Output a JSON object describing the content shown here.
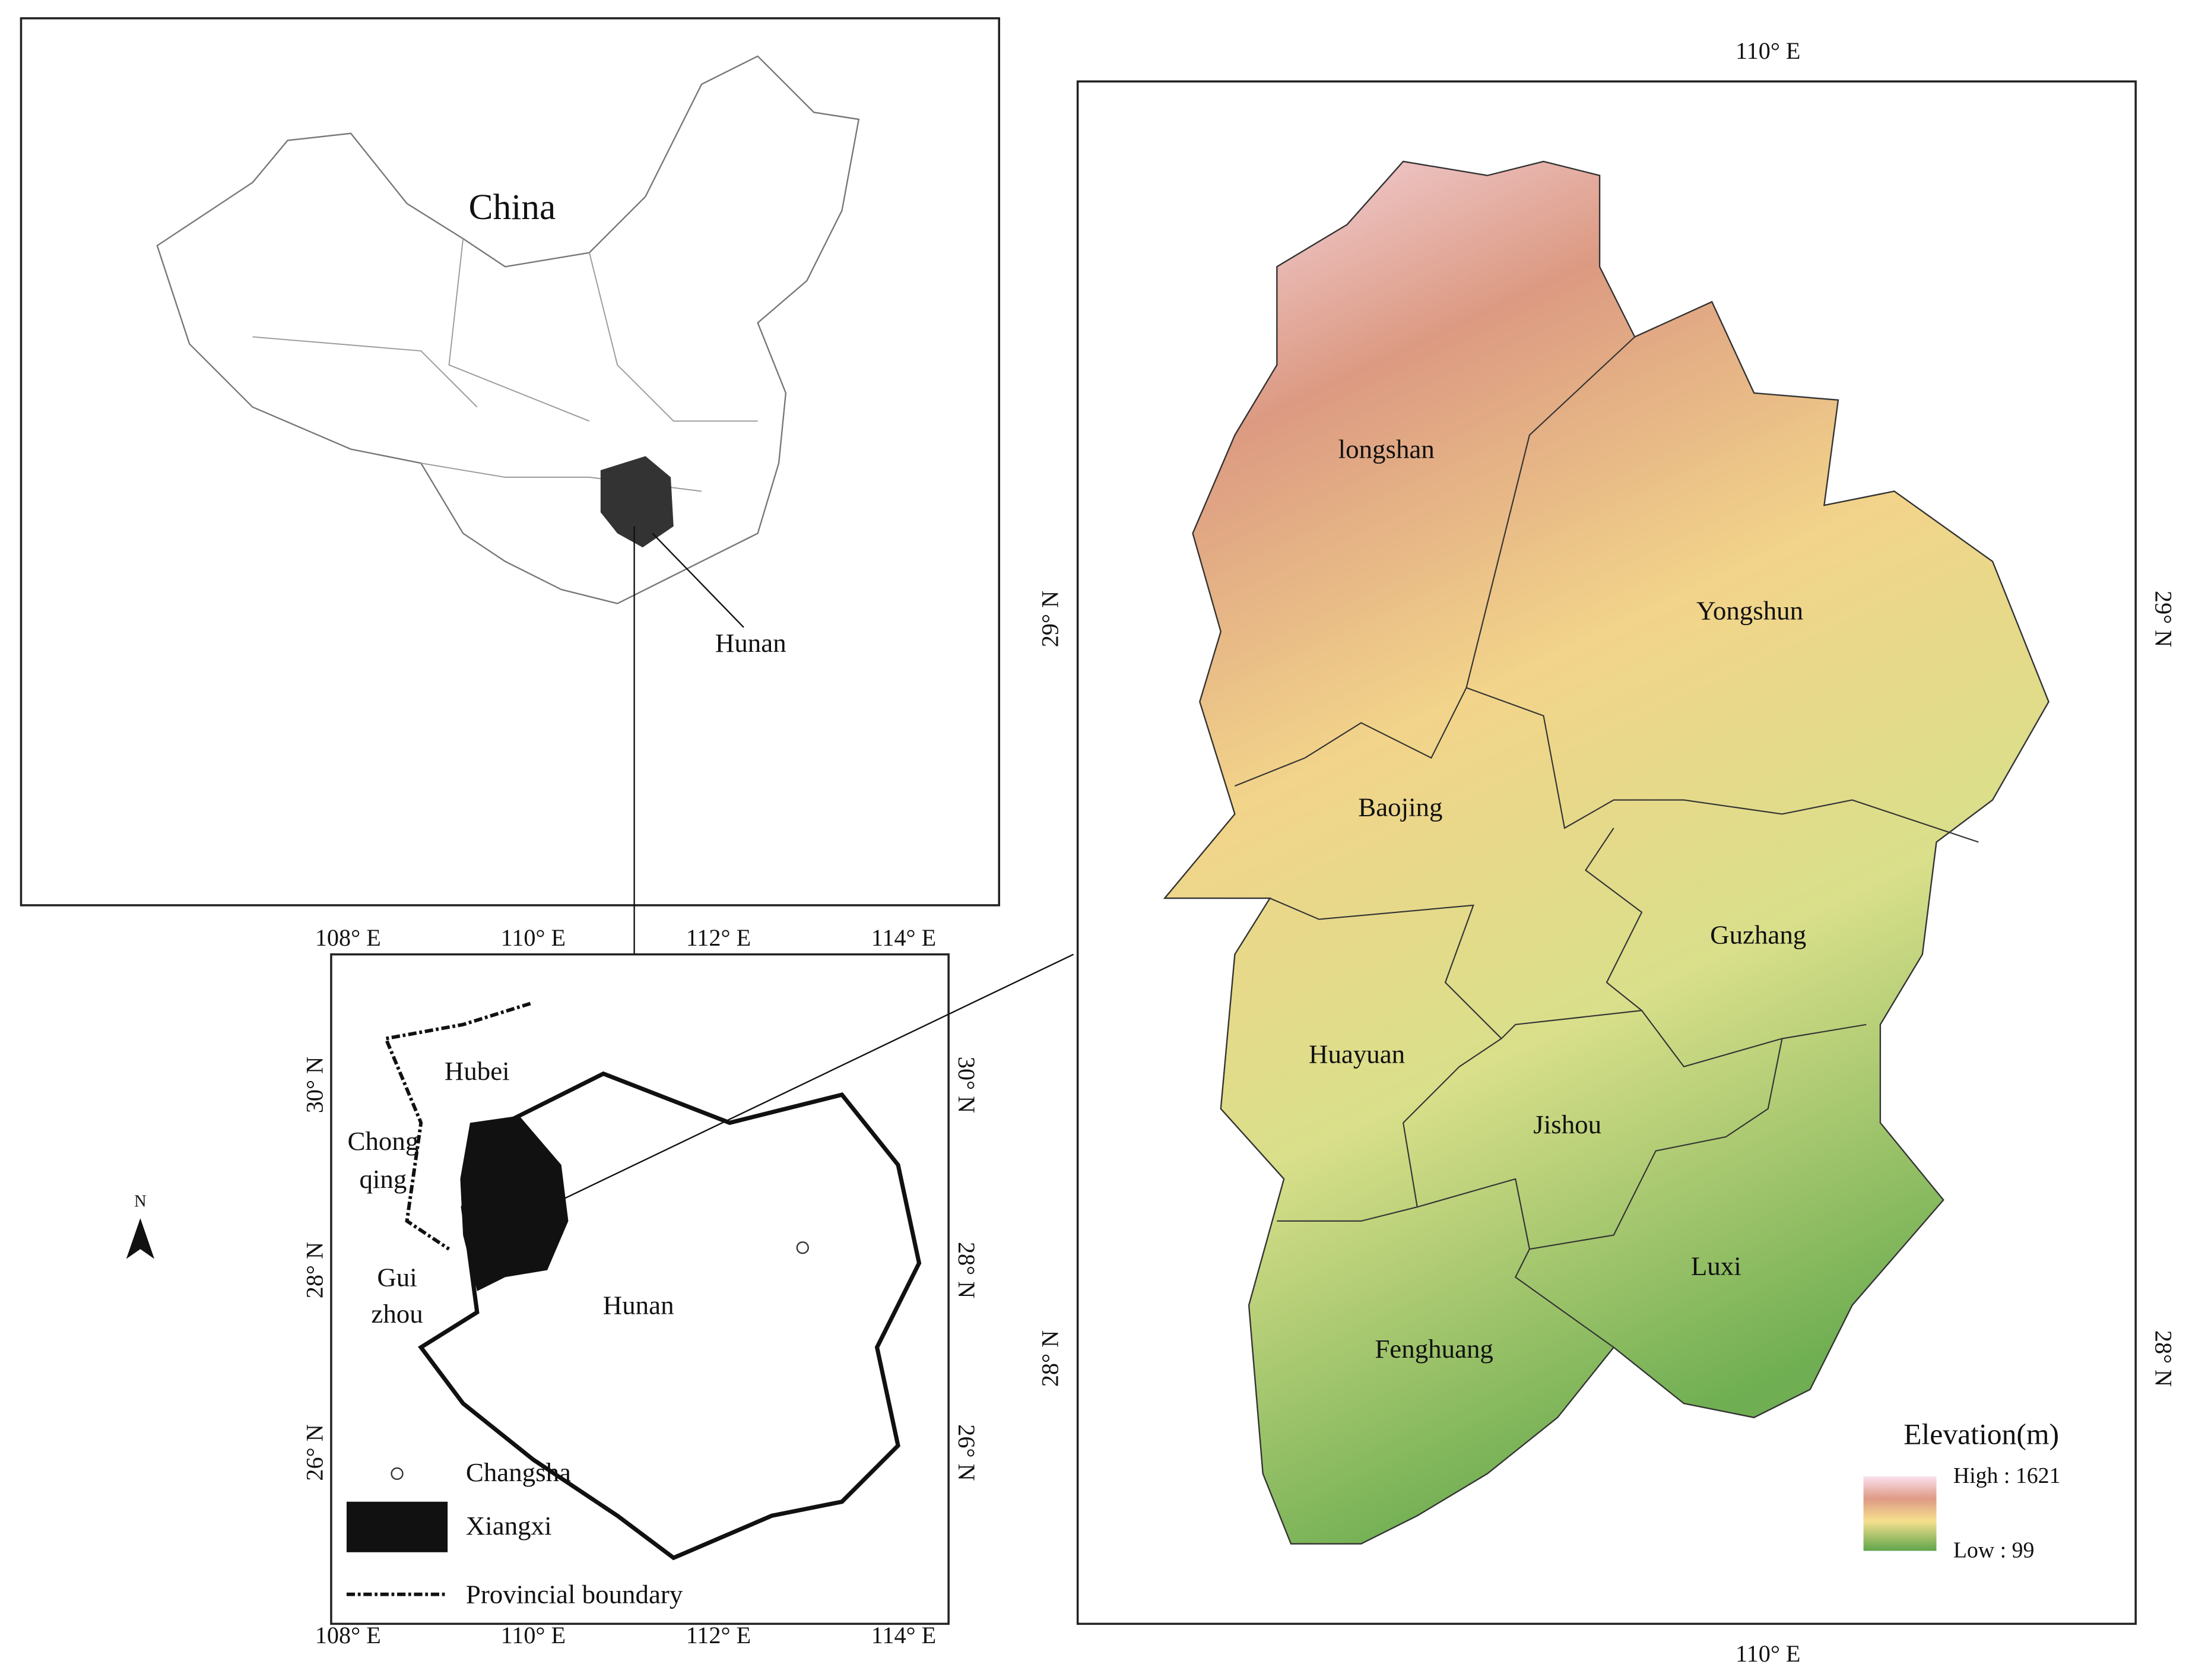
{
  "china_map": {
    "title": "China",
    "callout": "Hunan"
  },
  "hunan_map": {
    "top_ticks": [
      "108° E",
      "110° E",
      "112° E",
      "114° E"
    ],
    "bottom_ticks": [
      "108° E",
      "110° E",
      "112° E",
      "114° E"
    ],
    "left_ticks": [
      "30° N",
      "28° N",
      "26° N"
    ],
    "right_ticks": [
      "30° N",
      "28° N",
      "26° N"
    ],
    "labels": {
      "hubei": "Hubei",
      "chongqing_1": "Chong",
      "chongqing_2": "qing",
      "guizhou_1": "Gui",
      "guizhou_2": "zhou",
      "hunan": "Hunan"
    },
    "legend": {
      "changsha": "Changsha",
      "xiangxi": "Xiangxi",
      "boundary": "Provincial boundary"
    }
  },
  "north_arrow": "N",
  "elevation_map": {
    "top_tick": "110° E",
    "bottom_tick": "110° E",
    "left_ticks": [
      "29° N",
      "28° N"
    ],
    "right_ticks": [
      "29° N",
      "28° N"
    ],
    "counties": [
      "longshan",
      "Yongshun",
      "Baojing",
      "Guzhang",
      "Huayuan",
      "Jishou",
      "Luxi",
      "Fenghuang"
    ],
    "legend": {
      "title": "Elevation(m)",
      "high": "High : 1621",
      "low": "Low : 99"
    }
  }
}
